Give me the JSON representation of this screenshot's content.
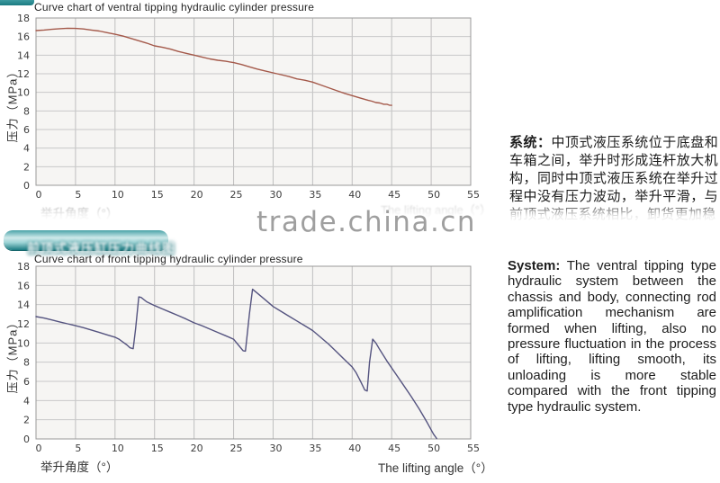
{
  "page": {
    "watermark": "trade.china.cn"
  },
  "charts": {
    "ventral": {
      "title": "Curve chart of ventral tipping hydraulic cylinder pressure",
      "ylabel": "压力（MPa）",
      "xlabel_zh": "举升角度（°）",
      "xlabel_en": "The lifting angle（°）"
    },
    "front": {
      "banner_zh": "前顶式液压缸压力曲线图",
      "title": "Curve chart of front tipping hydraulic cylinder pressure",
      "ylabel": "压力（MPa）",
      "xlabel_zh": "举升角度（°）",
      "xlabel_en": "The lifting angle（°）"
    }
  },
  "chart_data": [
    {
      "type": "line",
      "title": "Curve chart of ventral tipping hydraulic cylinder pressure",
      "xlabel": "举升角度（°）/ The lifting angle（°）",
      "ylabel": "压力（MPa）",
      "xlim": [
        0,
        55
      ],
      "ylim": [
        0,
        18
      ],
      "xticks": [
        0,
        5,
        10,
        15,
        20,
        25,
        30,
        35,
        40,
        45,
        50,
        55
      ],
      "yticks": [
        0,
        2,
        4,
        6,
        8,
        10,
        12,
        14,
        16,
        18
      ],
      "grid": true,
      "legend": "none",
      "line_color": "#a4594a",
      "points": [
        [
          0,
          16.65
        ],
        [
          1,
          16.7
        ],
        [
          2,
          16.78
        ],
        [
          3,
          16.85
        ],
        [
          4,
          16.9
        ],
        [
          5,
          16.88
        ],
        [
          6,
          16.82
        ],
        [
          7,
          16.7
        ],
        [
          8,
          16.6
        ],
        [
          9,
          16.42
        ],
        [
          10,
          16.25
        ],
        [
          11,
          16.05
        ],
        [
          12,
          15.8
        ],
        [
          13,
          15.55
        ],
        [
          14,
          15.3
        ],
        [
          15,
          15.0
        ],
        [
          16,
          14.85
        ],
        [
          17,
          14.65
        ],
        [
          18,
          14.4
        ],
        [
          19,
          14.2
        ],
        [
          20,
          14.0
        ],
        [
          21,
          13.8
        ],
        [
          22,
          13.6
        ],
        [
          23,
          13.45
        ],
        [
          24,
          13.35
        ],
        [
          25,
          13.2
        ],
        [
          26,
          13.0
        ],
        [
          27,
          12.75
        ],
        [
          28,
          12.5
        ],
        [
          29,
          12.3
        ],
        [
          30,
          12.1
        ],
        [
          31,
          11.9
        ],
        [
          32,
          11.7
        ],
        [
          33,
          11.45
        ],
        [
          34,
          11.3
        ],
        [
          35,
          11.1
        ],
        [
          36,
          10.8
        ],
        [
          37,
          10.5
        ],
        [
          38,
          10.2
        ],
        [
          39,
          9.9
        ],
        [
          40,
          9.65
        ],
        [
          41,
          9.4
        ],
        [
          42,
          9.15
        ],
        [
          42.5,
          9.05
        ],
        [
          43,
          8.9
        ],
        [
          43.5,
          8.85
        ],
        [
          44,
          8.72
        ],
        [
          44.4,
          8.72
        ],
        [
          44.7,
          8.62
        ],
        [
          45,
          8.6
        ]
      ]
    },
    {
      "type": "line",
      "title": "Curve chart of front tipping hydraulic cylinder pressure",
      "xlabel": "举升角度（°）/ The lifting angle（°）",
      "ylabel": "压力（MPa）",
      "xlim": [
        0,
        55
      ],
      "ylim": [
        0,
        18
      ],
      "xticks": [
        0,
        5,
        10,
        15,
        20,
        25,
        30,
        35,
        40,
        45,
        50,
        55
      ],
      "yticks": [
        0,
        2,
        4,
        6,
        8,
        10,
        12,
        14,
        16,
        18
      ],
      "grid": true,
      "legend": "none",
      "line_color": "#54537f",
      "points": [
        [
          0,
          12.75
        ],
        [
          1,
          12.6
        ],
        [
          2,
          12.4
        ],
        [
          3,
          12.2
        ],
        [
          4,
          12.0
        ],
        [
          5,
          11.8
        ],
        [
          6,
          11.6
        ],
        [
          7,
          11.35
        ],
        [
          8,
          11.1
        ],
        [
          9,
          10.85
        ],
        [
          10,
          10.6
        ],
        [
          10.5,
          10.4
        ],
        [
          11,
          10.1
        ],
        [
          11.5,
          9.8
        ],
        [
          11.9,
          9.5
        ],
        [
          12.3,
          9.4
        ],
        [
          12.6,
          11.5
        ],
        [
          13,
          14.8
        ],
        [
          13.3,
          14.75
        ],
        [
          14,
          14.3
        ],
        [
          15,
          13.9
        ],
        [
          16,
          13.55
        ],
        [
          17,
          13.2
        ],
        [
          18,
          12.85
        ],
        [
          19,
          12.5
        ],
        [
          20,
          12.1
        ],
        [
          21,
          11.8
        ],
        [
          22,
          11.45
        ],
        [
          23,
          11.1
        ],
        [
          24,
          10.75
        ],
        [
          25,
          10.4
        ],
        [
          25.6,
          9.8
        ],
        [
          26.2,
          9.2
        ],
        [
          26.5,
          9.15
        ],
        [
          27,
          13.0
        ],
        [
          27.4,
          15.6
        ],
        [
          28,
          15.2
        ],
        [
          29,
          14.5
        ],
        [
          30,
          13.8
        ],
        [
          31,
          13.3
        ],
        [
          32,
          12.8
        ],
        [
          33,
          12.3
        ],
        [
          34,
          11.8
        ],
        [
          35,
          11.3
        ],
        [
          36,
          10.6
        ],
        [
          37,
          9.9
        ],
        [
          38,
          9.1
        ],
        [
          39,
          8.3
        ],
        [
          40,
          7.5
        ],
        [
          40.5,
          6.9
        ],
        [
          41,
          6.1
        ],
        [
          41.6,
          5.1
        ],
        [
          41.9,
          5.0
        ],
        [
          42.2,
          8.0
        ],
        [
          42.6,
          10.4
        ],
        [
          43,
          10.0
        ],
        [
          43.5,
          9.3
        ],
        [
          44.5,
          8.0
        ],
        [
          45.5,
          6.8
        ],
        [
          46.5,
          5.6
        ],
        [
          47.5,
          4.4
        ],
        [
          48.5,
          3.1
        ],
        [
          49.5,
          1.7
        ],
        [
          50.3,
          0.5
        ],
        [
          50.7,
          0.05
        ]
      ]
    }
  ],
  "sidebar": {
    "zh": {
      "label": "系统：",
      "text": "中顶式液压系统位于底盘和车箱之间，举升时形成连杆放大机构，同时中顶式液压系统在举升过程中没有压力波动，举升平滑，与前顶式液压系统相比，卸货更加稳"
    },
    "en": {
      "label": "System:",
      "text": " The ventral tipping type hydraulic system between the chassis and body, connecting rod amplification mechanism are formed when lifting, also no pressure fluctuation in the process of lifting, lifting smooth, its unloading is more stable compared with the front tipping type hydraulic system."
    }
  }
}
